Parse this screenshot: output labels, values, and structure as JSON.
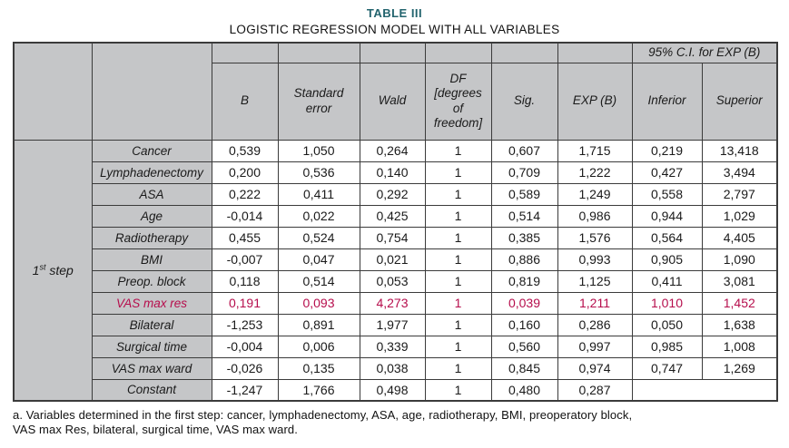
{
  "title": "TABLE III",
  "subtitle": "LOGISTIC REGRESSION MODEL WITH ALL VARIABLES",
  "colors": {
    "header_bg": "#c5c6c8",
    "highlight": "#b60d4c",
    "title": "#23646e",
    "border": "#3b3b3b"
  },
  "table": {
    "step": {
      "num": "1",
      "sup": "st",
      "word": "step"
    },
    "ci_header": "95% C.I. for EXP (B)",
    "columns": [
      "B",
      "Standard\nerror",
      "Wald",
      "DF\n[degrees\nof\nfreedom]",
      "Sig.",
      "EXP (B)",
      "Inferior",
      "Superior"
    ],
    "rows": [
      {
        "label": "Cancer",
        "highlight": false,
        "values": [
          "0,539",
          "1,050",
          "0,264",
          "1",
          "0,607",
          "1,715",
          "0,219",
          "13,418"
        ]
      },
      {
        "label": "Lymphadenectomy",
        "highlight": false,
        "values": [
          "0,200",
          "0,536",
          "0,140",
          "1",
          "0,709",
          "1,222",
          "0,427",
          "3,494"
        ]
      },
      {
        "label": "ASA",
        "highlight": false,
        "values": [
          "0,222",
          "0,411",
          "0,292",
          "1",
          "0,589",
          "1,249",
          "0,558",
          "2,797"
        ]
      },
      {
        "label": "Age",
        "highlight": false,
        "values": [
          "-0,014",
          "0,022",
          "0,425",
          "1",
          "0,514",
          "0,986",
          "0,944",
          "1,029"
        ]
      },
      {
        "label": "Radiotherapy",
        "highlight": false,
        "values": [
          "0,455",
          "0,524",
          "0,754",
          "1",
          "0,385",
          "1,576",
          "0,564",
          "4,405"
        ]
      },
      {
        "label": "BMI",
        "highlight": false,
        "values": [
          "-0,007",
          "0,047",
          "0,021",
          "1",
          "0,886",
          "0,993",
          "0,905",
          "1,090"
        ]
      },
      {
        "label": "Preop. block",
        "highlight": false,
        "values": [
          "0,118",
          "0,514",
          "0,053",
          "1",
          "0,819",
          "1,125",
          "0,411",
          "3,081"
        ]
      },
      {
        "label": "VAS max res",
        "highlight": true,
        "values": [
          "0,191",
          "0,093",
          "4,273",
          "1",
          "0,039",
          "1,211",
          "1,010",
          "1,452"
        ]
      },
      {
        "label": "Bilateral",
        "highlight": false,
        "values": [
          "-1,253",
          "0,891",
          "1,977",
          "1",
          "0,160",
          "0,286",
          "0,050",
          "1,638"
        ]
      },
      {
        "label": "Surgical time",
        "highlight": false,
        "values": [
          "-0,004",
          "0,006",
          "0,339",
          "1",
          "0,560",
          "0,997",
          "0,985",
          "1,008"
        ]
      },
      {
        "label": "VAS max ward",
        "highlight": false,
        "values": [
          "-0,026",
          "0,135",
          "0,038",
          "1",
          "0,845",
          "0,974",
          "0,747",
          "1,269"
        ]
      },
      {
        "label": "Constant",
        "highlight": false,
        "values": [
          "-1,247",
          "1,766",
          "0,498",
          "1",
          "0,480",
          "0,287"
        ]
      }
    ]
  },
  "footnote": {
    "line1": "a. Variables determined in the first step: cancer, lymphadenectomy, ASA, age, radiotherapy, BMI, preoperatory block,",
    "line2": "VAS max Res, bilateral, surgical time, VAS max ward."
  }
}
